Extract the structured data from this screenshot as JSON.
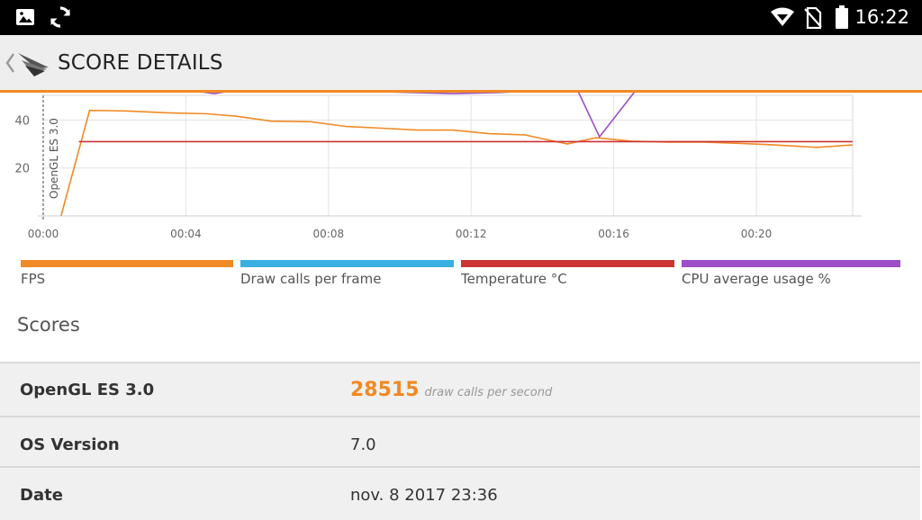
{
  "status_bar": {
    "time": "16:22",
    "icons": [
      "image-icon",
      "sync-icon",
      "wifi-icon",
      "no-sim-icon",
      "battery-icon"
    ]
  },
  "app_bar": {
    "title": "SCORE DETAILS",
    "accent_color": "#f08a24"
  },
  "chart_data": {
    "type": "line",
    "x_tick_labels": [
      "00:00",
      "00:04",
      "00:08",
      "00:12",
      "00:16",
      "00:20"
    ],
    "y_tick_labels": [
      "20",
      "40"
    ],
    "annotation": "OpenGL ES 3.0",
    "xlim_minutes": [
      0,
      22.7
    ],
    "series": [
      {
        "name": "FPS",
        "color": "#f08a24",
        "x_minutes": [
          0.5,
          1.3,
          2.3,
          3.5,
          4.6,
          5.4,
          6.4,
          7.5,
          8.5,
          9.5,
          10.5,
          11.5,
          12.5,
          13.5,
          14.7,
          15.5,
          16.5,
          17.5,
          18.5,
          19.5,
          20.5,
          21.7,
          22.7
        ],
        "values": [
          0,
          44,
          43.8,
          43,
          42.6,
          41.6,
          39.5,
          39.3,
          37.3,
          36.6,
          35.8,
          35.8,
          34.3,
          33.8,
          30,
          32.6,
          31.2,
          30.8,
          30.8,
          30.3,
          29.6,
          28.6,
          29.6
        ]
      },
      {
        "name": "Temperature °C",
        "color": "#cc3333",
        "x_minutes": [
          1.0,
          2.0,
          22.7
        ],
        "values": [
          31,
          31,
          31
        ]
      },
      {
        "name": "CPU average usage %",
        "color": "#9c4fc6",
        "x_minutes": [
          4.3,
          4.8,
          5.2,
          9.0,
          11.5,
          12.8,
          13.5,
          14.3,
          15.0,
          15.6,
          16.6,
          17.5
        ],
        "values": [
          52,
          51,
          52,
          52,
          51,
          51.5,
          52,
          52,
          52,
          33,
          52,
          52
        ]
      }
    ],
    "legend": [
      {
        "label": "FPS",
        "color": "#f08a24"
      },
      {
        "label": "Draw calls per frame",
        "color": "#3ab0e2"
      },
      {
        "label": "Temperature °C",
        "color": "#cc3333"
      },
      {
        "label": "CPU average usage %",
        "color": "#9c4fc6"
      }
    ]
  },
  "scores": {
    "heading": "Scores",
    "rows": [
      {
        "label": "OpenGL ES 3.0",
        "value": "28515",
        "unit": "draw calls per second"
      },
      {
        "label": "OS Version",
        "value": "7.0"
      },
      {
        "label": "Date",
        "value": "nov. 8 2017 23:36"
      }
    ]
  }
}
